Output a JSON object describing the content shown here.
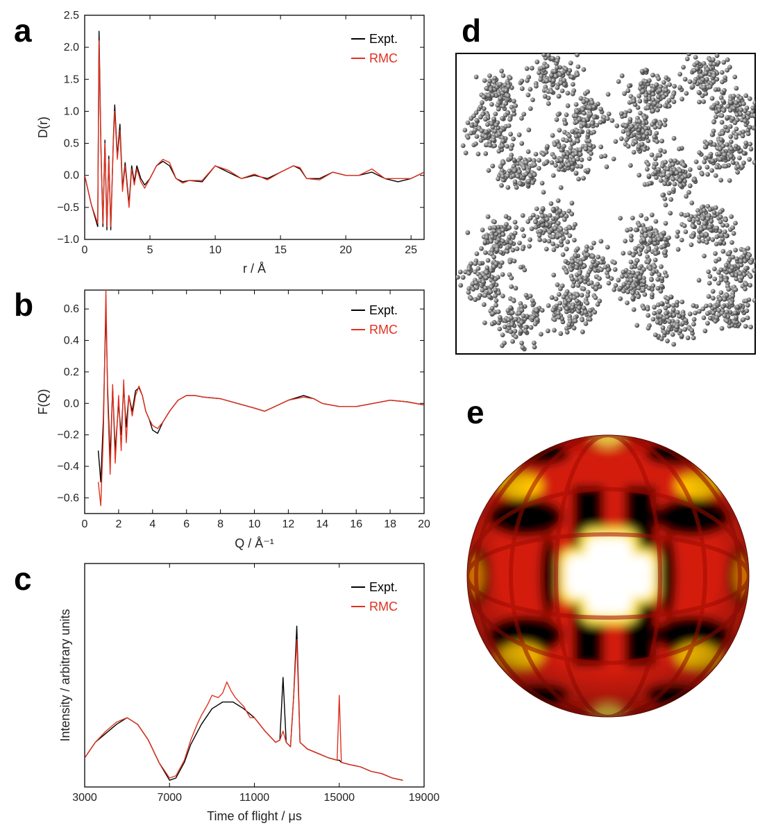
{
  "panels": {
    "a": "a",
    "b": "b",
    "c": "c",
    "d": "d",
    "e": "e"
  },
  "colors": {
    "expt": "#000000",
    "rmc": "#e0301e"
  },
  "chart_data": [
    {
      "id": "a",
      "type": "line",
      "ylabel": "D(r)",
      "xlabel": "r / Å",
      "xlim": [
        0,
        26
      ],
      "ylim": [
        -1.0,
        2.5
      ],
      "xticks": [
        0,
        5,
        10,
        15,
        20,
        25
      ],
      "xtick_labels": [
        "0",
        "5",
        "10",
        "15",
        "20",
        "25"
      ],
      "yticks": [
        -1.0,
        -0.5,
        0.0,
        0.5,
        1.0,
        1.5,
        2.0,
        2.5
      ],
      "ytick_labels": [
        "−1.0",
        "−0.5",
        "0.0",
        "0.5",
        "1.0",
        "1.5",
        "2.0",
        "2.5"
      ],
      "legend": [
        "Expt.",
        "RMC"
      ],
      "series": [
        {
          "name": "Expt.",
          "x": [
            0,
            0.5,
            1.0,
            1.1,
            1.25,
            1.4,
            1.55,
            1.7,
            1.85,
            2.0,
            2.2,
            2.3,
            2.5,
            2.7,
            2.9,
            3.1,
            3.4,
            3.6,
            3.8,
            4.0,
            4.3,
            4.6,
            5.0,
            5.5,
            6.0,
            6.5,
            7.0,
            7.5,
            8.0,
            9.0,
            10.0,
            11.0,
            12.0,
            13.0,
            14.0,
            15.0,
            16.0,
            16.5,
            17.0,
            18.0,
            19.0,
            20.0,
            21.0,
            22.0,
            23.0,
            24.0,
            25.0,
            26.0
          ],
          "y": [
            0.0,
            -0.45,
            -0.8,
            2.25,
            0.4,
            -0.8,
            0.55,
            -0.85,
            0.3,
            -0.85,
            0.6,
            1.1,
            0.3,
            0.8,
            -0.2,
            0.2,
            -0.45,
            0.15,
            -0.1,
            0.15,
            -0.05,
            -0.15,
            -0.05,
            0.15,
            0.22,
            0.15,
            -0.05,
            -0.1,
            -0.08,
            -0.1,
            0.15,
            0.05,
            -0.05,
            0.0,
            -0.05,
            0.05,
            0.15,
            0.1,
            -0.05,
            -0.05,
            0.05,
            0.0,
            0.0,
            0.05,
            -0.05,
            -0.1,
            -0.05,
            0.05
          ]
        },
        {
          "name": "RMC",
          "x": [
            0,
            0.5,
            1.0,
            1.1,
            1.25,
            1.4,
            1.55,
            1.7,
            1.85,
            2.0,
            2.2,
            2.3,
            2.5,
            2.7,
            2.9,
            3.1,
            3.4,
            3.6,
            3.8,
            4.0,
            4.3,
            4.6,
            5.0,
            5.5,
            6.0,
            6.5,
            7.0,
            7.5,
            8.0,
            9.0,
            10.0,
            11.0,
            12.0,
            13.0,
            14.0,
            15.0,
            16.0,
            16.5,
            17.0,
            18.0,
            19.0,
            20.0,
            21.0,
            22.0,
            23.0,
            24.0,
            25.0,
            26.0
          ],
          "y": [
            0.0,
            -0.45,
            -0.75,
            2.1,
            0.35,
            -0.75,
            0.5,
            -0.8,
            0.25,
            -0.8,
            0.55,
            1.0,
            0.25,
            0.7,
            -0.25,
            0.15,
            -0.5,
            0.1,
            -0.15,
            0.1,
            -0.1,
            -0.2,
            -0.05,
            0.15,
            0.25,
            0.2,
            -0.05,
            -0.12,
            -0.08,
            -0.08,
            0.15,
            0.08,
            -0.05,
            0.02,
            -0.07,
            0.05,
            0.15,
            0.12,
            -0.05,
            -0.07,
            0.05,
            0.0,
            0.0,
            0.1,
            -0.05,
            -0.05,
            -0.05,
            0.05
          ]
        }
      ]
    },
    {
      "id": "b",
      "type": "line",
      "ylabel": "F(Q)",
      "xlabel": "Q / Å⁻¹",
      "xlim": [
        0,
        20
      ],
      "ylim": [
        -0.7,
        0.72
      ],
      "xticks": [
        0,
        2,
        4,
        6,
        8,
        10,
        12,
        14,
        16,
        18,
        20
      ],
      "xtick_labels": [
        "0",
        "2",
        "4",
        "6",
        "8",
        "10",
        "12",
        "14",
        "16",
        "18",
        "20"
      ],
      "yticks": [
        -0.6,
        -0.4,
        -0.2,
        0.0,
        0.2,
        0.4,
        0.6
      ],
      "ytick_labels": [
        "−0.6",
        "−0.4",
        "−0.2",
        "0.0",
        "0.2",
        "0.4",
        "0.6"
      ],
      "legend": [
        "Expt.",
        "RMC"
      ],
      "series": [
        {
          "name": "Expt.",
          "x": [
            0.8,
            0.95,
            1.1,
            1.25,
            1.35,
            1.5,
            1.65,
            1.8,
            2.0,
            2.15,
            2.3,
            2.45,
            2.6,
            2.8,
            3.0,
            3.2,
            3.4,
            3.6,
            3.8,
            4.0,
            4.3,
            4.6,
            5.0,
            5.5,
            6.0,
            6.5,
            7.0,
            8.0,
            9.0,
            10.0,
            10.6,
            11.0,
            12.0,
            12.9,
            13.5,
            14.0,
            15.0,
            16.0,
            17.0,
            18.0,
            19.0,
            20.0
          ],
          "y": [
            -0.3,
            -0.5,
            -0.1,
            0.6,
            0.1,
            -0.35,
            0.1,
            -0.3,
            0.0,
            -0.2,
            0.1,
            -0.15,
            0.05,
            -0.05,
            0.08,
            0.1,
            0.05,
            -0.05,
            -0.1,
            -0.17,
            -0.19,
            -0.12,
            -0.05,
            0.02,
            0.05,
            0.05,
            0.04,
            0.03,
            0.0,
            -0.03,
            -0.05,
            -0.03,
            0.02,
            0.05,
            0.03,
            0.0,
            -0.02,
            -0.02,
            0.0,
            0.02,
            0.01,
            -0.01
          ]
        },
        {
          "name": "RMC",
          "x": [
            0.8,
            0.95,
            1.1,
            1.25,
            1.35,
            1.5,
            1.65,
            1.8,
            2.0,
            2.15,
            2.3,
            2.45,
            2.6,
            2.8,
            3.0,
            3.2,
            3.4,
            3.6,
            3.8,
            4.0,
            4.3,
            4.6,
            5.0,
            5.5,
            6.0,
            6.5,
            7.0,
            8.0,
            9.0,
            10.0,
            10.6,
            11.0,
            12.0,
            12.9,
            13.5,
            14.0,
            15.0,
            16.0,
            17.0,
            18.0,
            19.0,
            20.0
          ],
          "y": [
            -0.5,
            -0.65,
            -0.2,
            0.72,
            0.05,
            -0.45,
            0.12,
            -0.38,
            0.05,
            -0.3,
            0.15,
            -0.25,
            0.05,
            -0.08,
            0.05,
            0.11,
            0.05,
            -0.05,
            -0.1,
            -0.14,
            -0.16,
            -0.12,
            -0.05,
            0.02,
            0.05,
            0.05,
            0.04,
            0.03,
            0.0,
            -0.03,
            -0.05,
            -0.03,
            0.02,
            0.04,
            0.03,
            0.0,
            -0.02,
            -0.02,
            0.0,
            0.02,
            0.01,
            -0.01
          ]
        }
      ]
    },
    {
      "id": "c",
      "type": "line",
      "ylabel": "Intensity / arbitrary units",
      "xlabel": "Time of flight / μs",
      "xlim": [
        3000,
        19000
      ],
      "ylim": [
        0,
        1
      ],
      "xticks": [
        3000,
        7000,
        11000,
        15000,
        19000
      ],
      "xtick_labels": [
        "3000",
        "7000",
        "11000",
        "15000",
        "19000"
      ],
      "legend": [
        "Expt.",
        "RMC"
      ],
      "series": [
        {
          "name": "Expt.",
          "x": [
            3000,
            3500,
            4000,
            4500,
            5000,
            5500,
            6000,
            6500,
            7000,
            7300,
            7700,
            8000,
            8500,
            9000,
            9500,
            10000,
            10500,
            11000,
            11500,
            12000,
            12200,
            12350,
            12500,
            12700,
            12850,
            13000,
            13150,
            13500,
            14000,
            14500,
            14900,
            15000,
            15100,
            15500,
            16000,
            16500,
            17000,
            17500,
            18000
          ],
          "y": [
            0.13,
            0.2,
            0.24,
            0.28,
            0.31,
            0.28,
            0.21,
            0.11,
            0.03,
            0.04,
            0.11,
            0.19,
            0.28,
            0.35,
            0.38,
            0.38,
            0.35,
            0.31,
            0.25,
            0.2,
            0.21,
            0.49,
            0.2,
            0.18,
            0.4,
            0.72,
            0.2,
            0.17,
            0.15,
            0.13,
            0.12,
            0.12,
            0.11,
            0.1,
            0.09,
            0.07,
            0.06,
            0.04,
            0.03
          ]
        },
        {
          "name": "RMC",
          "x": [
            3000,
            3500,
            4000,
            4500,
            5000,
            5500,
            6000,
            6500,
            7000,
            7300,
            7700,
            8000,
            8300,
            8500,
            8800,
            9000,
            9300,
            9500,
            9700,
            9900,
            10100,
            10500,
            10800,
            11000,
            11500,
            12000,
            12200,
            12350,
            12500,
            12700,
            12850,
            13000,
            13150,
            13500,
            14000,
            14500,
            14900,
            15000,
            15100,
            15500,
            16000,
            16500,
            17000,
            17500,
            18000
          ],
          "y": [
            0.13,
            0.2,
            0.25,
            0.29,
            0.31,
            0.28,
            0.21,
            0.11,
            0.04,
            0.05,
            0.12,
            0.21,
            0.28,
            0.32,
            0.37,
            0.41,
            0.4,
            0.42,
            0.47,
            0.43,
            0.4,
            0.36,
            0.31,
            0.31,
            0.25,
            0.2,
            0.21,
            0.25,
            0.2,
            0.18,
            0.4,
            0.66,
            0.2,
            0.17,
            0.15,
            0.13,
            0.12,
            0.41,
            0.11,
            0.1,
            0.09,
            0.07,
            0.06,
            0.04,
            0.03
          ]
        }
      ]
    }
  ]
}
